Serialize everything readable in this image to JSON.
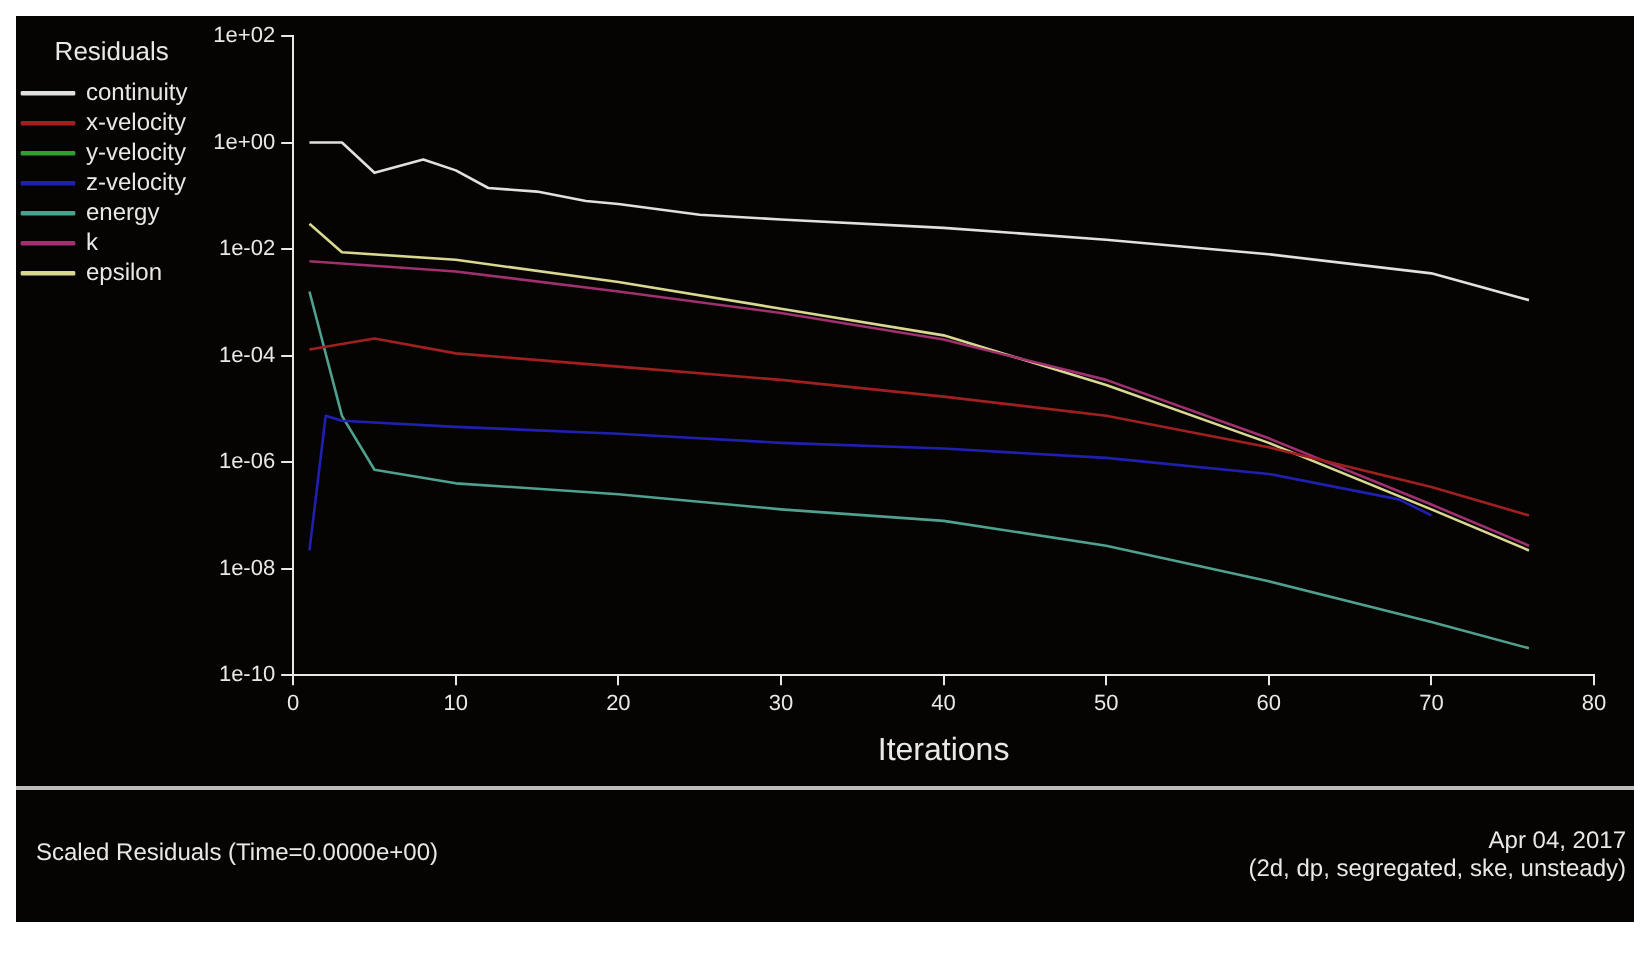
{
  "chart_data": {
    "type": "line",
    "xlabel": "Iterations",
    "legend_title": "Residuals",
    "legend": "top left",
    "log": "y",
    "grid": false,
    "marker": "none",
    "line_style": "solid",
    "xlim": [
      0,
      80
    ],
    "xticks": [
      0,
      10,
      20,
      30,
      40,
      50,
      60,
      70,
      80
    ],
    "ylim": [
      1e-10,
      100
    ],
    "yticks": [
      {
        "value": 1e-10,
        "label": "1e-10"
      },
      {
        "value": 1e-08,
        "label": "1e-08"
      },
      {
        "value": 1e-06,
        "label": "1e-06"
      },
      {
        "value": 0.0001,
        "label": "1e-04"
      },
      {
        "value": 0.01,
        "label": "1e-02"
      },
      {
        "value": 1,
        "label": "1e+00"
      },
      {
        "value": 100,
        "label": "1e+02"
      }
    ],
    "series": [
      {
        "name": "continuity",
        "color": "#e0e0e0",
        "x": [
          1,
          3,
          5,
          8,
          10,
          12,
          15,
          18,
          20,
          25,
          30,
          40,
          50,
          60,
          70,
          76
        ],
        "values": [
          1,
          1,
          0.27,
          0.48,
          0.3,
          0.14,
          0.12,
          0.08,
          0.07,
          0.044,
          0.036,
          0.025,
          0.015,
          0.008,
          0.0035,
          0.0011
        ]
      },
      {
        "name": "x-velocity",
        "color": "#a02020",
        "x": [
          1,
          5,
          10,
          20,
          30,
          40,
          50,
          60,
          70,
          76
        ],
        "values": [
          0.00013,
          0.00021,
          0.00011,
          6.2e-05,
          3.5e-05,
          1.7e-05,
          7.4e-06,
          1.9e-06,
          3.4e-07,
          1e-07
        ]
      },
      {
        "name": "y-velocity",
        "color": "#30a030"
      },
      {
        "name": "z-velocity",
        "color": "#2020b0",
        "x": [
          1,
          2,
          3,
          10,
          20,
          30,
          40,
          50,
          60,
          68,
          70
        ],
        "values": [
          2.2e-08,
          7.4e-06,
          6e-06,
          4.6e-06,
          3.4e-06,
          2.3e-06,
          1.8e-06,
          1.2e-06,
          6e-07,
          2e-07,
          1e-07
        ]
      },
      {
        "name": "energy",
        "color": "#50a090",
        "x": [
          1,
          3,
          5,
          10,
          20,
          30,
          40,
          50,
          60,
          70,
          76
        ],
        "values": [
          0.0016,
          7.4e-06,
          7.2e-07,
          4e-07,
          2.5e-07,
          1.3e-07,
          7.9e-08,
          2.7e-08,
          5.8e-09,
          1e-09,
          3.2e-10
        ]
      },
      {
        "name": "k",
        "color": "#a03070",
        "x": [
          1,
          10,
          20,
          30,
          40,
          50,
          60,
          70,
          76
        ],
        "values": [
          0.0059,
          0.0038,
          0.0016,
          0.00063,
          0.0002,
          3.5e-05,
          2.8e-06,
          1.6e-07,
          2.7e-08
        ]
      },
      {
        "name": "epsilon",
        "color": "#d8d890",
        "x": [
          1,
          3,
          10,
          20,
          30,
          40,
          50,
          60,
          70,
          76
        ],
        "values": [
          0.03,
          0.0087,
          0.0063,
          0.0024,
          0.00076,
          0.00024,
          2.8e-05,
          2.3e-06,
          1.3e-07,
          2.2e-08
        ]
      }
    ],
    "annotations": [
      "Scaled Residuals  (Time=0.0000e+00)",
      "Apr 04, 2017",
      "(2d, dp, segregated, ske, unsteady)"
    ]
  }
}
